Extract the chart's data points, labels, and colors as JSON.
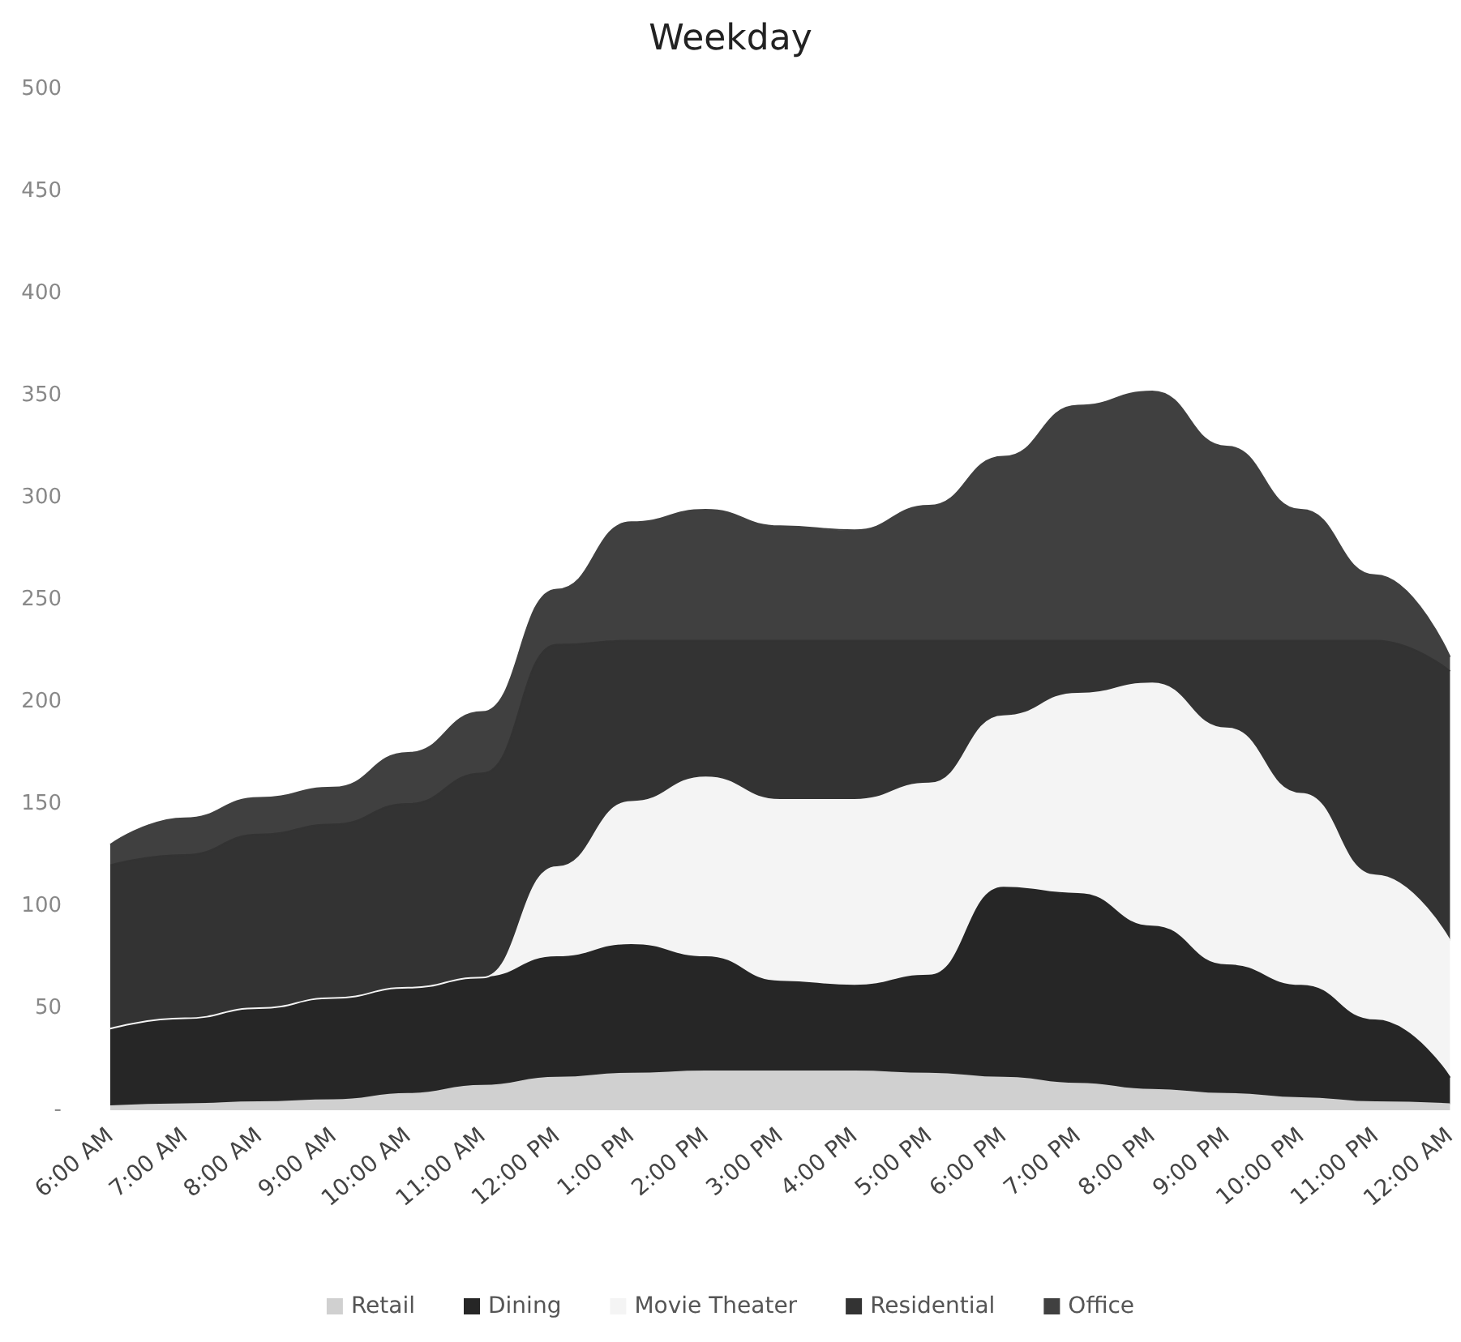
{
  "chart_data": {
    "type": "area",
    "stacked": true,
    "title": "Weekday",
    "categories": [
      "6:00 AM",
      "7:00 AM",
      "8:00 AM",
      "9:00 AM",
      "10:00 AM",
      "11:00 AM",
      "12:00 PM",
      "1:00 PM",
      "2:00 PM",
      "3:00 PM",
      "4:00 PM",
      "5:00 PM",
      "6:00 PM",
      "7:00 PM",
      "8:00 PM",
      "9:00 PM",
      "10:00 PM",
      "11:00 PM",
      "12:00 AM"
    ],
    "series": [
      {
        "name": "Retail",
        "color": "#d0d0d0",
        "values": [
          2,
          3,
          4,
          5,
          8,
          12,
          16,
          18,
          19,
          19,
          19,
          18,
          16,
          13,
          10,
          8,
          6,
          4,
          3
        ]
      },
      {
        "name": "Dining",
        "color": "#262626",
        "values": [
          38,
          42,
          46,
          50,
          52,
          53,
          59,
          63,
          56,
          44,
          42,
          48,
          93,
          93,
          80,
          63,
          55,
          40,
          13
        ]
      },
      {
        "name": "Movie Theater",
        "color": "#f4f4f4",
        "values": [
          0,
          0,
          0,
          0,
          0,
          0,
          44,
          70,
          88,
          89,
          91,
          94,
          84,
          98,
          119,
          116,
          94,
          71,
          67
        ]
      },
      {
        "name": "Residential",
        "color": "#333333",
        "values": [
          80,
          80,
          85,
          85,
          90,
          100,
          109,
          79,
          67,
          78,
          78,
          70,
          37,
          26,
          21,
          43,
          75,
          115,
          132
        ]
      },
      {
        "name": "Office",
        "color": "#404040",
        "values": [
          10,
          18,
          18,
          18,
          25,
          30,
          27,
          58,
          64,
          56,
          54,
          66,
          90,
          115,
          122,
          95,
          64,
          32,
          7
        ]
      }
    ],
    "ylim": [
      0,
      500
    ],
    "yticks": [
      {
        "value": 0,
        "label": "-"
      },
      50,
      100,
      150,
      200,
      250,
      300,
      350,
      400,
      450,
      500
    ],
    "grid": false,
    "legend": "bottom"
  }
}
